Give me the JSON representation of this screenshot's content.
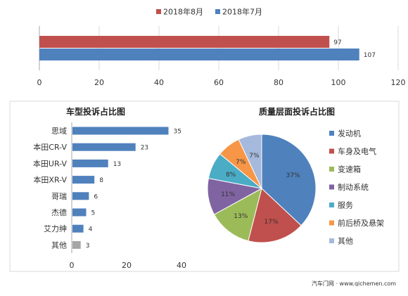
{
  "chart_data": [
    {
      "type": "bar",
      "orientation": "horizontal",
      "series": [
        {
          "name": "2018年8月",
          "values": [
            97
          ],
          "color": "#c0504d"
        },
        {
          "name": "2018年7月",
          "values": [
            107
          ],
          "color": "#4f81bd"
        }
      ],
      "xlim": [
        0,
        120
      ],
      "xticks": [
        0,
        20,
        40,
        60,
        80,
        100,
        120
      ],
      "legend": "top",
      "grid": true
    },
    {
      "type": "bar",
      "orientation": "horizontal",
      "title": "车型投诉占比图",
      "categories": [
        "思域",
        "本田CR-V",
        "本田UR-V",
        "本田XR-V",
        "哥瑞",
        "杰德",
        "艾力绅",
        "其他"
      ],
      "values": [
        35,
        23,
        13,
        8,
        6,
        5,
        4,
        3
      ],
      "colors": [
        "#4f81bd",
        "#4f81bd",
        "#4f81bd",
        "#4f81bd",
        "#4f81bd",
        "#4f81bd",
        "#4f81bd",
        "#a6a6a6"
      ],
      "xlim": [
        0,
        40
      ],
      "xticks": [
        0,
        20,
        40
      ]
    },
    {
      "type": "pie",
      "title": "质量层面投诉占比图",
      "labels": [
        "发动机",
        "车身及电气",
        "变速箱",
        "制动系统",
        "服务",
        "前后桥及悬架",
        "其他"
      ],
      "values": [
        37,
        17,
        13,
        11,
        8,
        7,
        7
      ],
      "value_labels": [
        "37%",
        "17%",
        "13%",
        "11%",
        "8%",
        "7%",
        "7%"
      ],
      "colors": [
        "#4f81bd",
        "#c0504d",
        "#9bbb59",
        "#8064a2",
        "#4bacc6",
        "#f79646",
        "#a5b9dd"
      ],
      "legend": "right"
    }
  ],
  "watermark": "汽车门网 · www.qichemen.com"
}
